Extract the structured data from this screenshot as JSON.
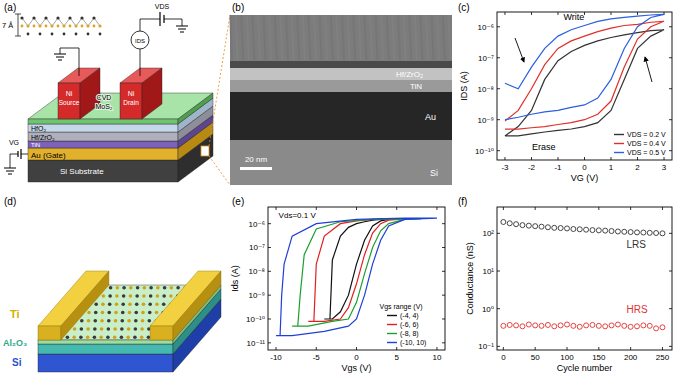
{
  "figure": {
    "panel_labels": [
      "(a)",
      "(b)",
      "(c)",
      "(d)",
      "(e)",
      "(f)"
    ],
    "panel_a": {
      "labels": [
        "7 Å",
        "VDS",
        "IDS",
        "Ni",
        "Source",
        "Ni",
        "Drain",
        "CVD",
        "MoS₂",
        "HfO₂",
        "Hf/ZrO₂",
        "TiN",
        "Au (Gate)",
        "Si Substrate",
        "VG"
      ]
    },
    "panel_b": {
      "labels": [
        "Hf/ZrO₂",
        "TiN",
        "Au",
        "Si"
      ],
      "scale_bar": "20 nm"
    },
    "panel_d": {
      "labels": [
        "Ti",
        "Al₂O₃",
        "Si"
      ]
    }
  },
  "chart_data": [
    {
      "type": "line",
      "x_label": "VG (V)",
      "y_label": "IDS (A)",
      "log": "y",
      "grid": false,
      "legend": "lower right",
      "xlim": [
        -3.3,
        3.3
      ],
      "ylim": [
        5e-11,
        3e-06
      ],
      "xticks": [
        -3,
        -2,
        -1,
        0,
        1,
        2,
        3
      ],
      "yticks": [
        {
          "value": 1e-10,
          "label": "10⁻¹⁰"
        },
        {
          "value": 1e-09,
          "label": "10⁻⁹"
        },
        {
          "value": 1e-08,
          "label": "10⁻⁸"
        },
        {
          "value": 1e-07,
          "label": "10⁻⁷"
        },
        {
          "value": 1e-06,
          "label": "10⁻⁶"
        }
      ],
      "annotations": [
        "Write",
        "Erase"
      ],
      "x": [
        -3,
        -2.5,
        -2,
        -1.5,
        -1,
        -0.5,
        0,
        0.5,
        1,
        1.5,
        2,
        2.5,
        3,
        2.5,
        2,
        1.5,
        1,
        0.5,
        0,
        -0.5,
        -1,
        -1.5,
        -2,
        -2.5,
        -3
      ],
      "series": [
        {
          "name": "VDS = 0.2 V",
          "color": "#333333",
          "values": [
            3e-10,
            3e-10,
            3.5e-10,
            4e-10,
            4.5e-10,
            5e-10,
            6e-10,
            8e-10,
            2e-09,
            2e-08,
            2e-07,
            5e-07,
            8e-07,
            7.5e-07,
            6.5e-07,
            5.5e-07,
            4.5e-07,
            3.5e-07,
            2.5e-07,
            1.6e-07,
            8e-08,
            2e-08,
            2e-09,
            6e-10,
            3e-10
          ]
        },
        {
          "name": "VDS = 0.4 V",
          "color": "#e0302a",
          "values": [
            5e-10,
            5e-10,
            5.5e-10,
            6e-10,
            7e-10,
            8e-10,
            1e-09,
            1.5e-09,
            4e-09,
            5e-08,
            4e-07,
            1e-06,
            1.5e-06,
            1.4e-06,
            1.2e-06,
            1.1e-06,
            9e-07,
            7e-07,
            5e-07,
            3.5e-07,
            2e-07,
            6e-08,
            1e-08,
            2e-09,
            9e-10
          ]
        },
        {
          "name": "VDS = 0.5 V",
          "color": "#2a5fe0",
          "values": [
            1e-09,
            1.2e-09,
            1.5e-09,
            1.8e-09,
            2e-09,
            2.5e-09,
            3e-09,
            5e-09,
            2e-08,
            2e-07,
            1e-06,
            2e-06,
            2.5e-06,
            2.4e-06,
            2.2e-06,
            2e-06,
            1.8e-06,
            1.5e-06,
            1.1e-06,
            8e-07,
            5e-07,
            2e-07,
            5e-08,
            1e-08,
            1.5e-08
          ]
        }
      ]
    },
    {
      "type": "line",
      "x_label": "Vgs (V)",
      "y_label": "Ids (A)",
      "log": "y",
      "grid": false,
      "legend": "lower right",
      "xlim": [
        -11,
        11
      ],
      "ylim": [
        5e-12,
        5e-06
      ],
      "xticks": [
        -10,
        -5,
        0,
        5,
        10
      ],
      "yticks": [
        {
          "value": 1e-11,
          "label": "10⁻¹¹"
        },
        {
          "value": 1e-10,
          "label": "10⁻¹⁰"
        },
        {
          "value": 1e-09,
          "label": "10⁻⁹"
        },
        {
          "value": 1e-08,
          "label": "10⁻⁸"
        },
        {
          "value": 1e-07,
          "label": "10⁻⁷"
        },
        {
          "value": 1e-06,
          "label": "10⁻⁶"
        }
      ],
      "annotations": [
        "Vds=0.1 V",
        "Vgs range (V)"
      ],
      "series": [
        {
          "name": "(-4, 4)",
          "color": "#111111",
          "x": [
            -4,
            -3,
            -2,
            -1,
            0,
            1,
            2,
            3,
            4,
            3,
            2,
            1,
            0,
            -1,
            -2,
            -3,
            -3.3,
            -4
          ],
          "values": [
            1e-10,
            1e-10,
            2e-10,
            1e-09,
            2e-08,
            2e-07,
            8e-07,
            1.3e-06,
            1.5e-06,
            1.5e-06,
            1.4e-06,
            1.2e-06,
            1e-06,
            7e-07,
            3e-07,
            3e-08,
            1e-10,
            1e-10
          ]
        },
        {
          "name": "(-6, 6)",
          "color": "#e02020",
          "x": [
            -6,
            -4,
            -2,
            -1,
            0,
            1,
            2,
            3,
            4,
            6,
            4,
            2,
            0,
            -2,
            -4,
            -5,
            -5.3,
            -6
          ],
          "values": [
            8e-11,
            8e-11,
            1e-10,
            3e-10,
            3e-09,
            5e-08,
            4e-07,
            1e-06,
            1.4e-06,
            1.6e-06,
            1.6e-06,
            1.5e-06,
            1.3e-06,
            1e-06,
            3e-07,
            2e-08,
            8e-11,
            8e-11
          ]
        },
        {
          "name": "(-8, 8)",
          "color": "#1e9e2e",
          "x": [
            -8,
            -6,
            -3,
            -1,
            0,
            1,
            2,
            3,
            4,
            6,
            8,
            6,
            2,
            -2,
            -5,
            -6.5,
            -7,
            -7.3,
            -8
          ],
          "values": [
            5e-11,
            5e-11,
            8e-11,
            1e-10,
            5e-10,
            8e-09,
            1e-07,
            5e-07,
            1e-06,
            1.5e-06,
            1.6e-06,
            1.6e-06,
            1.5e-06,
            1.2e-06,
            6e-07,
            5e-08,
            1e-09,
            5e-11,
            5e-11
          ]
        },
        {
          "name": "(-10, 10)",
          "color": "#1f3fd8",
          "x": [
            -10,
            -8,
            -4,
            -1,
            0,
            1,
            2,
            3,
            4,
            6,
            10,
            6,
            0,
            -5,
            -8,
            -9,
            -9.3,
            -9.5,
            -10
          ],
          "values": [
            2e-11,
            2e-11,
            3e-11,
            5e-11,
            1e-10,
            1e-09,
            2e-08,
            2e-07,
            8e-07,
            1.5e-06,
            1.7e-06,
            1.7e-06,
            1.5e-06,
            1e-06,
            3e-07,
            2e-08,
            1e-09,
            2e-11,
            2e-11
          ]
        }
      ]
    },
    {
      "type": "scatter",
      "x_label": "Cycle number",
      "y_label": "Conductance (nS)",
      "log": "y",
      "grid": false,
      "xlim": [
        -10,
        265
      ],
      "ylim": [
        0.08,
        500
      ],
      "xticks": [
        0,
        50,
        100,
        150,
        200,
        250
      ],
      "yticks": [
        {
          "value": 0.1,
          "label": "10⁻¹"
        },
        {
          "value": 1,
          "label": "10⁰"
        },
        {
          "value": 10,
          "label": "10¹"
        },
        {
          "value": 100,
          "label": "10²"
        }
      ],
      "x": [
        0,
        10,
        20,
        30,
        40,
        50,
        60,
        70,
        80,
        90,
        100,
        110,
        120,
        130,
        140,
        150,
        160,
        170,
        180,
        190,
        200,
        210,
        220,
        230,
        240,
        250
      ],
      "series": [
        {
          "name": "LRS",
          "color": "#333333",
          "marker": "circle",
          "values": [
            200,
            185,
            175,
            165,
            160,
            155,
            150,
            145,
            140,
            138,
            135,
            130,
            128,
            125,
            122,
            120,
            118,
            115,
            112,
            110,
            108,
            106,
            105,
            103,
            102,
            100
          ]
        },
        {
          "name": "HRS",
          "color": "#e03030",
          "marker": "circle",
          "values": [
            0.35,
            0.37,
            0.36,
            0.34,
            0.38,
            0.36,
            0.35,
            0.37,
            0.34,
            0.36,
            0.38,
            0.35,
            0.33,
            0.36,
            0.37,
            0.35,
            0.34,
            0.36,
            0.38,
            0.35,
            0.33,
            0.34,
            0.36,
            0.35,
            0.3,
            0.32
          ]
        }
      ]
    }
  ]
}
